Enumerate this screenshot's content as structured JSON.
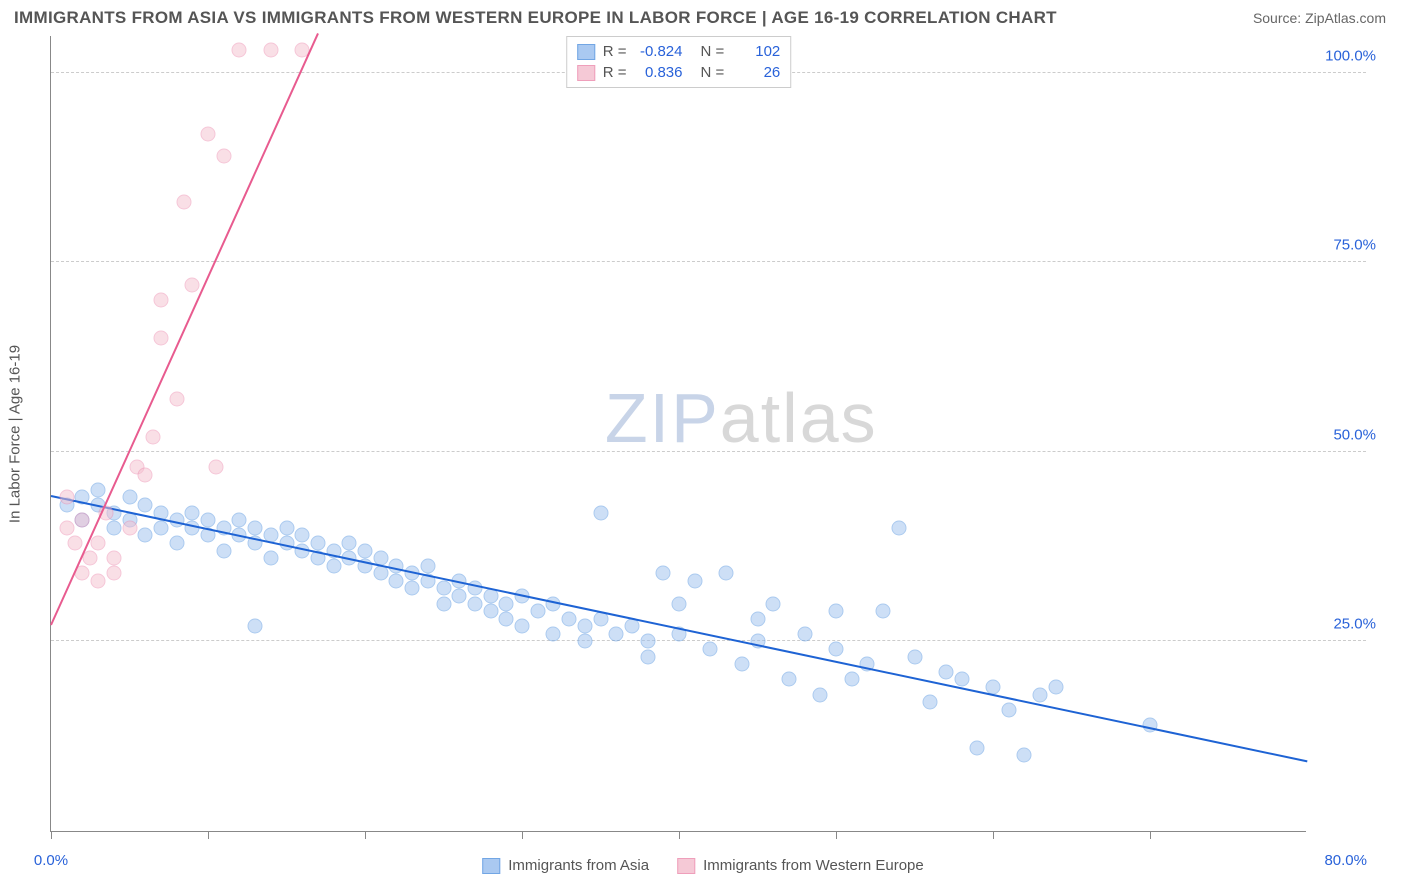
{
  "header": {
    "title": "IMMIGRANTS FROM ASIA VS IMMIGRANTS FROM WESTERN EUROPE IN LABOR FORCE | AGE 16-19 CORRELATION CHART",
    "source": "Source: ZipAtlas.com"
  },
  "watermark": {
    "zip": "ZIP",
    "atlas": "atlas"
  },
  "chart": {
    "type": "scatter",
    "background_color": "#ffffff",
    "grid_color": "#cccccc",
    "axis_color": "#888888",
    "font_size_labels": 15,
    "tick_label_color": "#2962d9",
    "xrange": [
      0,
      80
    ],
    "yrange": [
      0,
      105
    ],
    "xticks": [
      0,
      10,
      20,
      30,
      40,
      50,
      60,
      70
    ],
    "xtick_labels": {
      "0": "0.0%",
      "80": "80.0%"
    },
    "ygrid": [
      25,
      50,
      75,
      100
    ],
    "ytick_labels": {
      "25": "25.0%",
      "50": "50.0%",
      "75": "75.0%",
      "100": "100.0%"
    },
    "ylabel": "In Labor Force | Age 16-19",
    "marker_size": 15,
    "marker_opacity": 0.5,
    "line_width": 2,
    "series": [
      {
        "name": "Immigrants from Asia",
        "fill_color": "#9cc0ef",
        "stroke_color": "#5a97e0",
        "line_color": "#1e63d4",
        "R": "-0.824",
        "N": "102",
        "trend": {
          "x1": 0,
          "y1": 44,
          "x2": 80,
          "y2": 9
        },
        "points": [
          [
            1,
            43
          ],
          [
            2,
            44
          ],
          [
            2,
            41
          ],
          [
            3,
            43
          ],
          [
            3,
            45
          ],
          [
            4,
            42
          ],
          [
            4,
            40
          ],
          [
            5,
            44
          ],
          [
            5,
            41
          ],
          [
            6,
            43
          ],
          [
            6,
            39
          ],
          [
            7,
            42
          ],
          [
            7,
            40
          ],
          [
            8,
            41
          ],
          [
            8,
            38
          ],
          [
            9,
            40
          ],
          [
            9,
            42
          ],
          [
            10,
            39
          ],
          [
            10,
            41
          ],
          [
            11,
            40
          ],
          [
            11,
            37
          ],
          [
            12,
            39
          ],
          [
            12,
            41
          ],
          [
            13,
            38
          ],
          [
            13,
            40
          ],
          [
            14,
            39
          ],
          [
            14,
            36
          ],
          [
            15,
            38
          ],
          [
            15,
            40
          ],
          [
            16,
            37
          ],
          [
            16,
            39
          ],
          [
            17,
            36
          ],
          [
            17,
            38
          ],
          [
            18,
            37
          ],
          [
            18,
            35
          ],
          [
            19,
            36
          ],
          [
            19,
            38
          ],
          [
            20,
            35
          ],
          [
            20,
            37
          ],
          [
            21,
            34
          ],
          [
            21,
            36
          ],
          [
            22,
            35
          ],
          [
            22,
            33
          ],
          [
            23,
            34
          ],
          [
            23,
            32
          ],
          [
            24,
            33
          ],
          [
            24,
            35
          ],
          [
            25,
            32
          ],
          [
            25,
            30
          ],
          [
            26,
            33
          ],
          [
            26,
            31
          ],
          [
            27,
            30
          ],
          [
            27,
            32
          ],
          [
            28,
            31
          ],
          [
            28,
            29
          ],
          [
            29,
            30
          ],
          [
            29,
            28
          ],
          [
            30,
            31
          ],
          [
            30,
            27
          ],
          [
            31,
            29
          ],
          [
            32,
            30
          ],
          [
            32,
            26
          ],
          [
            33,
            28
          ],
          [
            34,
            27
          ],
          [
            34,
            25
          ],
          [
            35,
            28
          ],
          [
            35,
            42
          ],
          [
            36,
            26
          ],
          [
            37,
            27
          ],
          [
            38,
            25
          ],
          [
            38,
            23
          ],
          [
            39,
            34
          ],
          [
            40,
            26
          ],
          [
            40,
            30
          ],
          [
            41,
            33
          ],
          [
            42,
            24
          ],
          [
            43,
            34
          ],
          [
            44,
            22
          ],
          [
            45,
            25
          ],
          [
            45,
            28
          ],
          [
            46,
            30
          ],
          [
            47,
            20
          ],
          [
            48,
            26
          ],
          [
            49,
            18
          ],
          [
            50,
            24
          ],
          [
            50,
            29
          ],
          [
            51,
            20
          ],
          [
            52,
            22
          ],
          [
            53,
            29
          ],
          [
            54,
            40
          ],
          [
            55,
            23
          ],
          [
            56,
            17
          ],
          [
            57,
            21
          ],
          [
            58,
            20
          ],
          [
            59,
            11
          ],
          [
            60,
            19
          ],
          [
            61,
            16
          ],
          [
            62,
            10
          ],
          [
            63,
            18
          ],
          [
            64,
            19
          ],
          [
            70,
            14
          ],
          [
            13,
            27
          ]
        ]
      },
      {
        "name": "Immigrants from Western Europe",
        "fill_color": "#f4c0cf",
        "stroke_color": "#ed8fb0",
        "line_color": "#e85b8f",
        "R": "0.836",
        "N": "26",
        "trend": {
          "x1": 0,
          "y1": 27,
          "x2": 17,
          "y2": 105
        },
        "points": [
          [
            1,
            44
          ],
          [
            1,
            40
          ],
          [
            1.5,
            38
          ],
          [
            2,
            41
          ],
          [
            2,
            34
          ],
          [
            2.5,
            36
          ],
          [
            3,
            38
          ],
          [
            3,
            33
          ],
          [
            3.5,
            42
          ],
          [
            4,
            36
          ],
          [
            4,
            34
          ],
          [
            5,
            40
          ],
          [
            5.5,
            48
          ],
          [
            6,
            47
          ],
          [
            6.5,
            52
          ],
          [
            7,
            65
          ],
          [
            7,
            70
          ],
          [
            8,
            57
          ],
          [
            8.5,
            83
          ],
          [
            9,
            72
          ],
          [
            10,
            92
          ],
          [
            10.5,
            48
          ],
          [
            11,
            89
          ],
          [
            12,
            103
          ],
          [
            14,
            103
          ],
          [
            16,
            103
          ]
        ]
      }
    ]
  },
  "legend_top": {
    "r_label": "R =",
    "n_label": "N ="
  },
  "legend_bottom": {
    "items": [
      "Immigrants from Asia",
      "Immigrants from Western Europe"
    ]
  }
}
